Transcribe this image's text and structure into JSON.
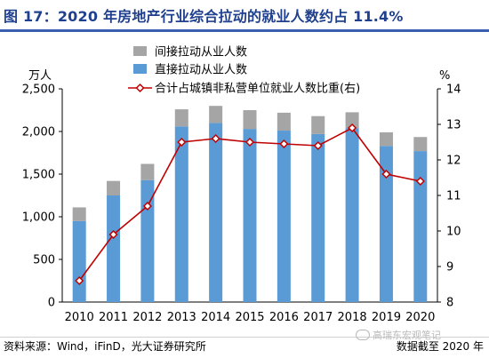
{
  "header": {
    "title": "图 17：2020 年房地产行业综合拉动的就业人数约占 11.4%"
  },
  "chart_data": {
    "type": "bar",
    "stacked": true,
    "categories": [
      "2010",
      "2011",
      "2012",
      "2013",
      "2014",
      "2015",
      "2016",
      "2017",
      "2018",
      "2019",
      "2020"
    ],
    "series": [
      {
        "name": "直接拉动从业人数",
        "kind": "bar",
        "axis": "left",
        "color": "#5b9bd5",
        "values": [
          950,
          1250,
          1430,
          2060,
          2100,
          2030,
          2010,
          1970,
          2040,
          1830,
          1770
        ]
      },
      {
        "name": "间接拉动从业人数",
        "kind": "bar",
        "axis": "left",
        "color": "#a5a5a5",
        "values": [
          160,
          170,
          190,
          200,
          200,
          220,
          210,
          210,
          185,
          160,
          165
        ]
      },
      {
        "name": "合计占城镇非私营单位就业人数比重(右)",
        "kind": "line",
        "axis": "right",
        "color": "#c00000",
        "values": [
          8.6,
          9.9,
          10.7,
          12.5,
          12.6,
          12.5,
          12.45,
          12.4,
          12.9,
          11.6,
          11.4
        ]
      }
    ],
    "left_axis": {
      "label": "万人",
      "ylim": [
        0,
        2500
      ],
      "ticks": [
        0,
        500,
        1000,
        1500,
        2000,
        2500
      ],
      "tick_labels": [
        "0",
        "500",
        "1,000",
        "1,500",
        "2,000",
        "2,500"
      ]
    },
    "right_axis": {
      "label": "%",
      "ylim": [
        8,
        14
      ],
      "ticks": [
        8,
        9,
        10,
        11,
        12,
        13,
        14
      ],
      "tick_labels": [
        "8",
        "9",
        "10",
        "11",
        "12",
        "13",
        "14"
      ]
    },
    "legend": {
      "position": "top-left",
      "order": [
        "间接拉动从业人数",
        "直接拉动从业人数",
        "合计占城镇非私营单位就业人数比重(右)"
      ]
    },
    "grid": false
  },
  "footer": {
    "source": "资料来源：Wind，iFinD，光大证券研究所",
    "date_note": "数据截至 2020 年",
    "watermark": "高瑞东宏观笔记"
  }
}
